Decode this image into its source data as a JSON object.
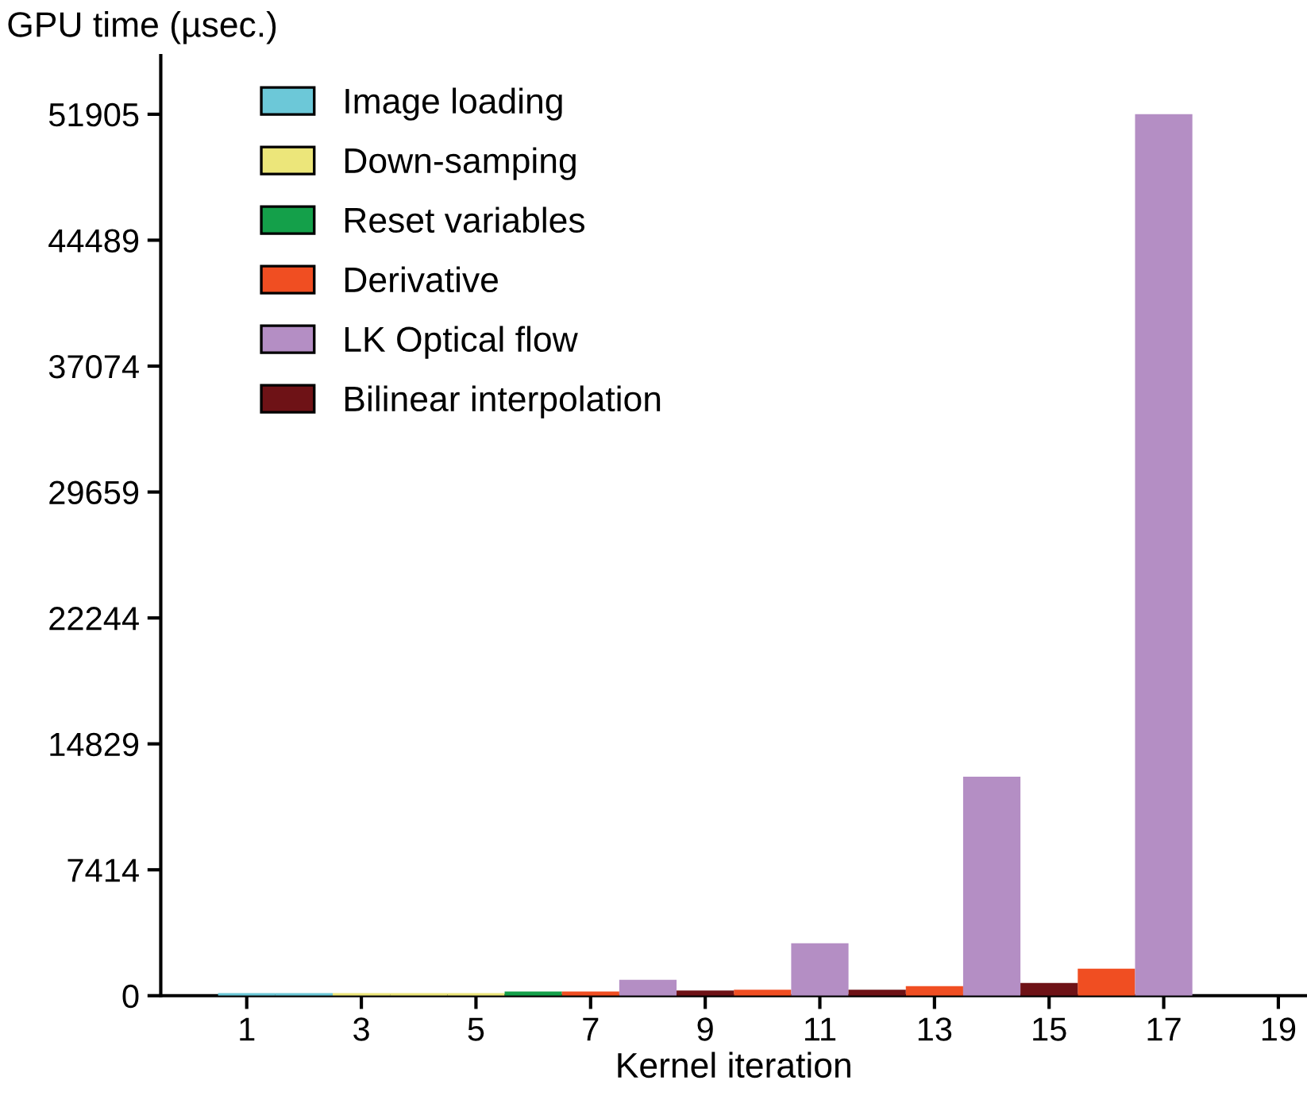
{
  "chart_data": {
    "type": "bar",
    "xlabel": "Kernel iteration",
    "ylabel": "GPU time (µsec.)",
    "series": [
      {
        "name": "Image loading",
        "color": "#6cc8d8",
        "x": [
          1,
          2
        ],
        "values": [
          150,
          150
        ]
      },
      {
        "name": "Down-samping",
        "color": "#ece67a",
        "x": [
          3,
          4,
          5
        ],
        "values": [
          150,
          150,
          150
        ]
      },
      {
        "name": "Reset variables",
        "color": "#14a04a",
        "x": [
          6
        ],
        "values": [
          250
        ]
      },
      {
        "name": "Derivative",
        "color": "#f04e22",
        "x": [
          7,
          10,
          13,
          16
        ],
        "values": [
          250,
          350,
          560,
          1590
        ]
      },
      {
        "name": "LK Optical flow",
        "color": "#b48ec4",
        "x": [
          8,
          11,
          14,
          17
        ],
        "values": [
          935,
          3090,
          12900,
          51905
        ]
      },
      {
        "name": "Bilinear interpolation",
        "color": "#6e1216",
        "x": [
          9,
          12,
          15
        ],
        "values": [
          300,
          350,
          750
        ]
      }
    ],
    "xlim": [
      -0.5,
      19.5
    ],
    "xticks": [
      1,
      3,
      5,
      7,
      9,
      11,
      13,
      15,
      17,
      19
    ],
    "ylim": [
      0,
      55350
    ],
    "yticks": [
      0,
      7414,
      14829,
      22244,
      29659,
      37074,
      44489,
      51905
    ],
    "grid": false,
    "legend": "top left"
  }
}
